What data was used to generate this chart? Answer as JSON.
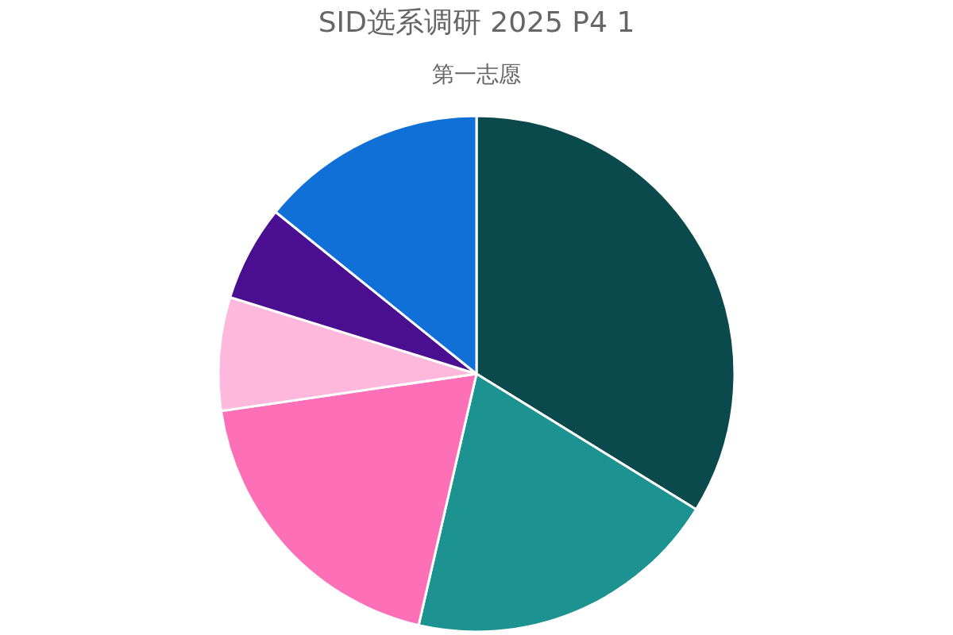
{
  "chart_data": {
    "type": "pie",
    "title": "SID选系调研 2025 P4 1",
    "subtitle": "第一志愿",
    "categories": [
      null,
      null,
      null,
      null,
      null,
      null
    ],
    "values": [
      33.8,
      19.8,
      19.1,
      7.1,
      6.0,
      14.2
    ],
    "colors": [
      "#0b4a4c",
      "#1c9391",
      "#fd70b8",
      "#fdb8dc",
      "#4a0e90",
      "#1170d8"
    ]
  }
}
